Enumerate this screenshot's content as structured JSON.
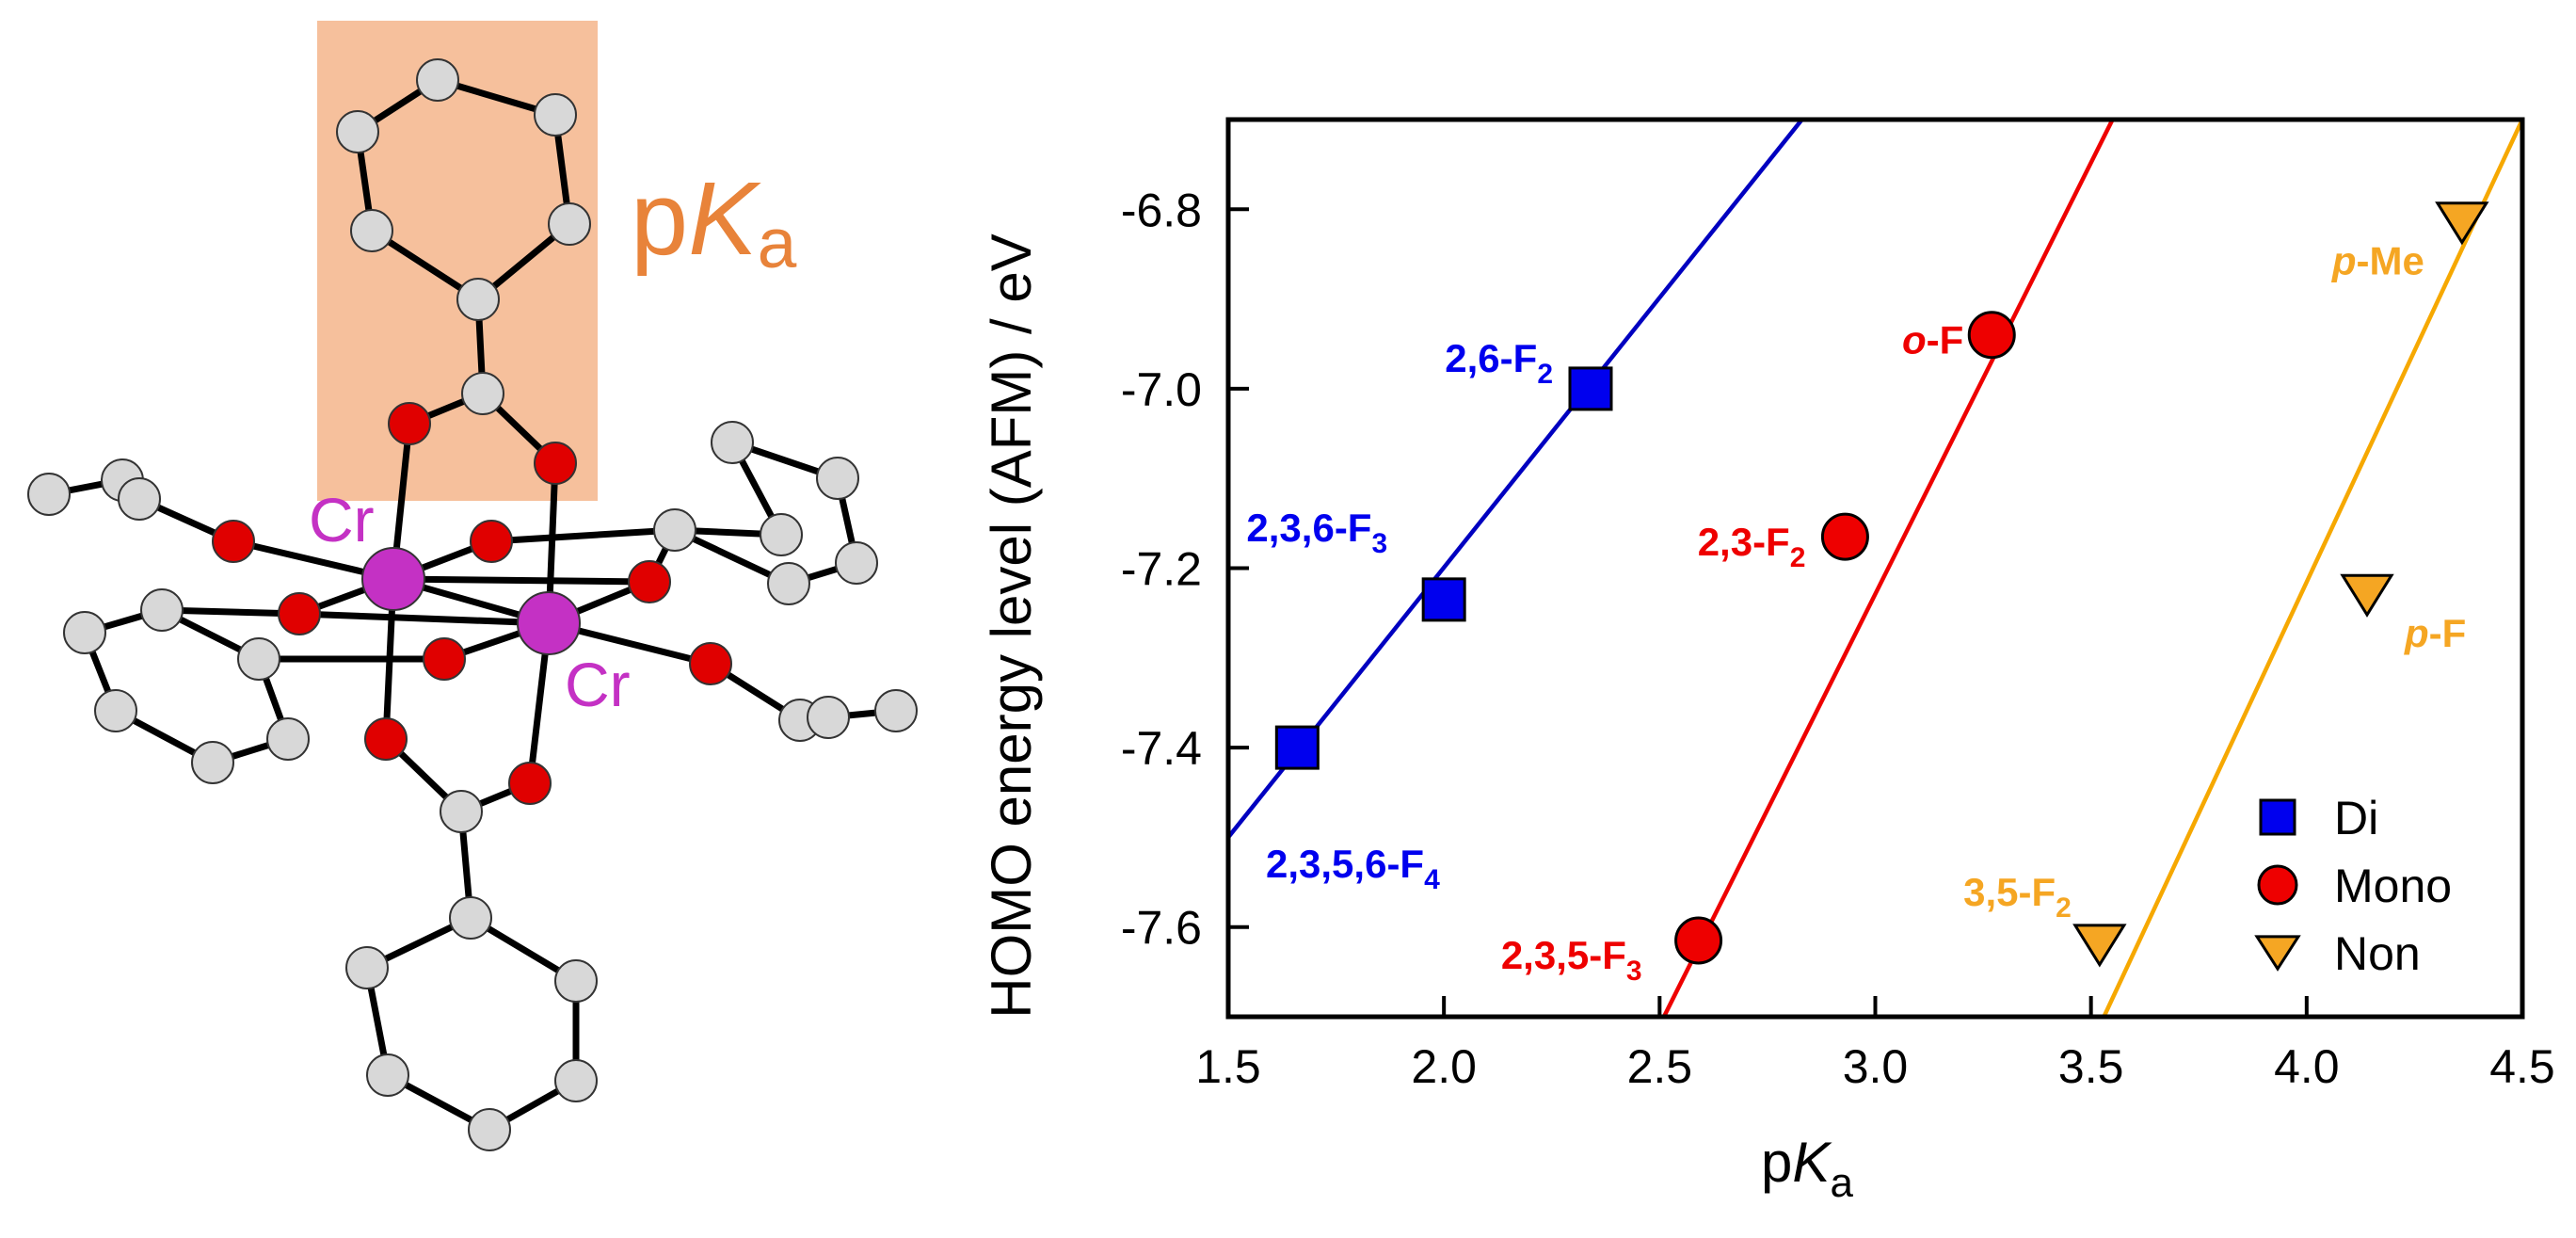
{
  "molecule": {
    "highlight_label_p": "p",
    "highlight_label_K": "K",
    "highlight_label_a": "a",
    "metal_label_1": "Cr",
    "metal_label_2": "Cr",
    "highlight_color": "#f6c09c",
    "metal_color": "#c431c4",
    "oxygen_color": "#e00000",
    "carbon_color": "#d8d8d8"
  },
  "chart_data": {
    "type": "scatter",
    "xlabel_main": "p",
    "xlabel_italic": "K",
    "xlabel_sub": "a",
    "ylabel": "HOMO energy level (AFM) / eV",
    "xlim": [
      1.5,
      4.5
    ],
    "ylim": [
      -7.7,
      -6.7
    ],
    "xticks": [
      "1.5",
      "2.0",
      "2.5",
      "3.0",
      "3.5",
      "4.0",
      "4.5"
    ],
    "yticks": [
      "-6.8",
      "-7.0",
      "-7.2",
      "-7.4",
      "-7.6"
    ],
    "series": [
      {
        "name": "Di",
        "marker": "square",
        "color": "#0000ee",
        "line_color": "#0000c0",
        "points": [
          {
            "x": 2.34,
            "y": -7.0,
            "label_main": "2,6-F",
            "label_sub": "2"
          },
          {
            "x": 2.0,
            "y": -7.235,
            "label_main": "2,3,6-F",
            "label_sub": "3"
          },
          {
            "x": 1.66,
            "y": -7.4,
            "label_main": "2,3,5,6-F",
            "label_sub": "4"
          }
        ],
        "fit": [
          [
            1.5,
            -7.5
          ],
          [
            2.83,
            -6.7
          ]
        ]
      },
      {
        "name": "Mono",
        "marker": "circle",
        "color": "#ee0000",
        "line_color": "#ee0000",
        "points": [
          {
            "x": 3.27,
            "y": -6.94,
            "label_prefix": "o",
            "label_main": "-F",
            "label_sub": ""
          },
          {
            "x": 2.93,
            "y": -7.165,
            "label_main": "2,3-F",
            "label_sub": "2"
          },
          {
            "x": 2.59,
            "y": -7.615,
            "label_main": "2,3,5-F",
            "label_sub": "3"
          }
        ],
        "fit": [
          [
            2.51,
            -7.7
          ],
          [
            3.55,
            -6.7
          ]
        ]
      },
      {
        "name": "Non",
        "marker": "triangle-down",
        "color": "#f5a623",
        "line_color": "#f6a800",
        "points": [
          {
            "x": 4.36,
            "y": -6.815,
            "label_prefix": "p",
            "label_main": "-Me",
            "label_sub": ""
          },
          {
            "x": 4.14,
            "y": -7.23,
            "label_prefix": "p",
            "label_main": "-F",
            "label_sub": ""
          },
          {
            "x": 3.52,
            "y": -7.62,
            "label_main": "3,5-F",
            "label_sub": "2"
          }
        ],
        "fit": [
          [
            3.53,
            -7.7
          ],
          [
            4.5,
            -6.7
          ]
        ]
      }
    ],
    "legend": {
      "placement": "bottom-right",
      "entries": [
        "Di",
        "Mono",
        "Non"
      ]
    },
    "grid": false
  }
}
